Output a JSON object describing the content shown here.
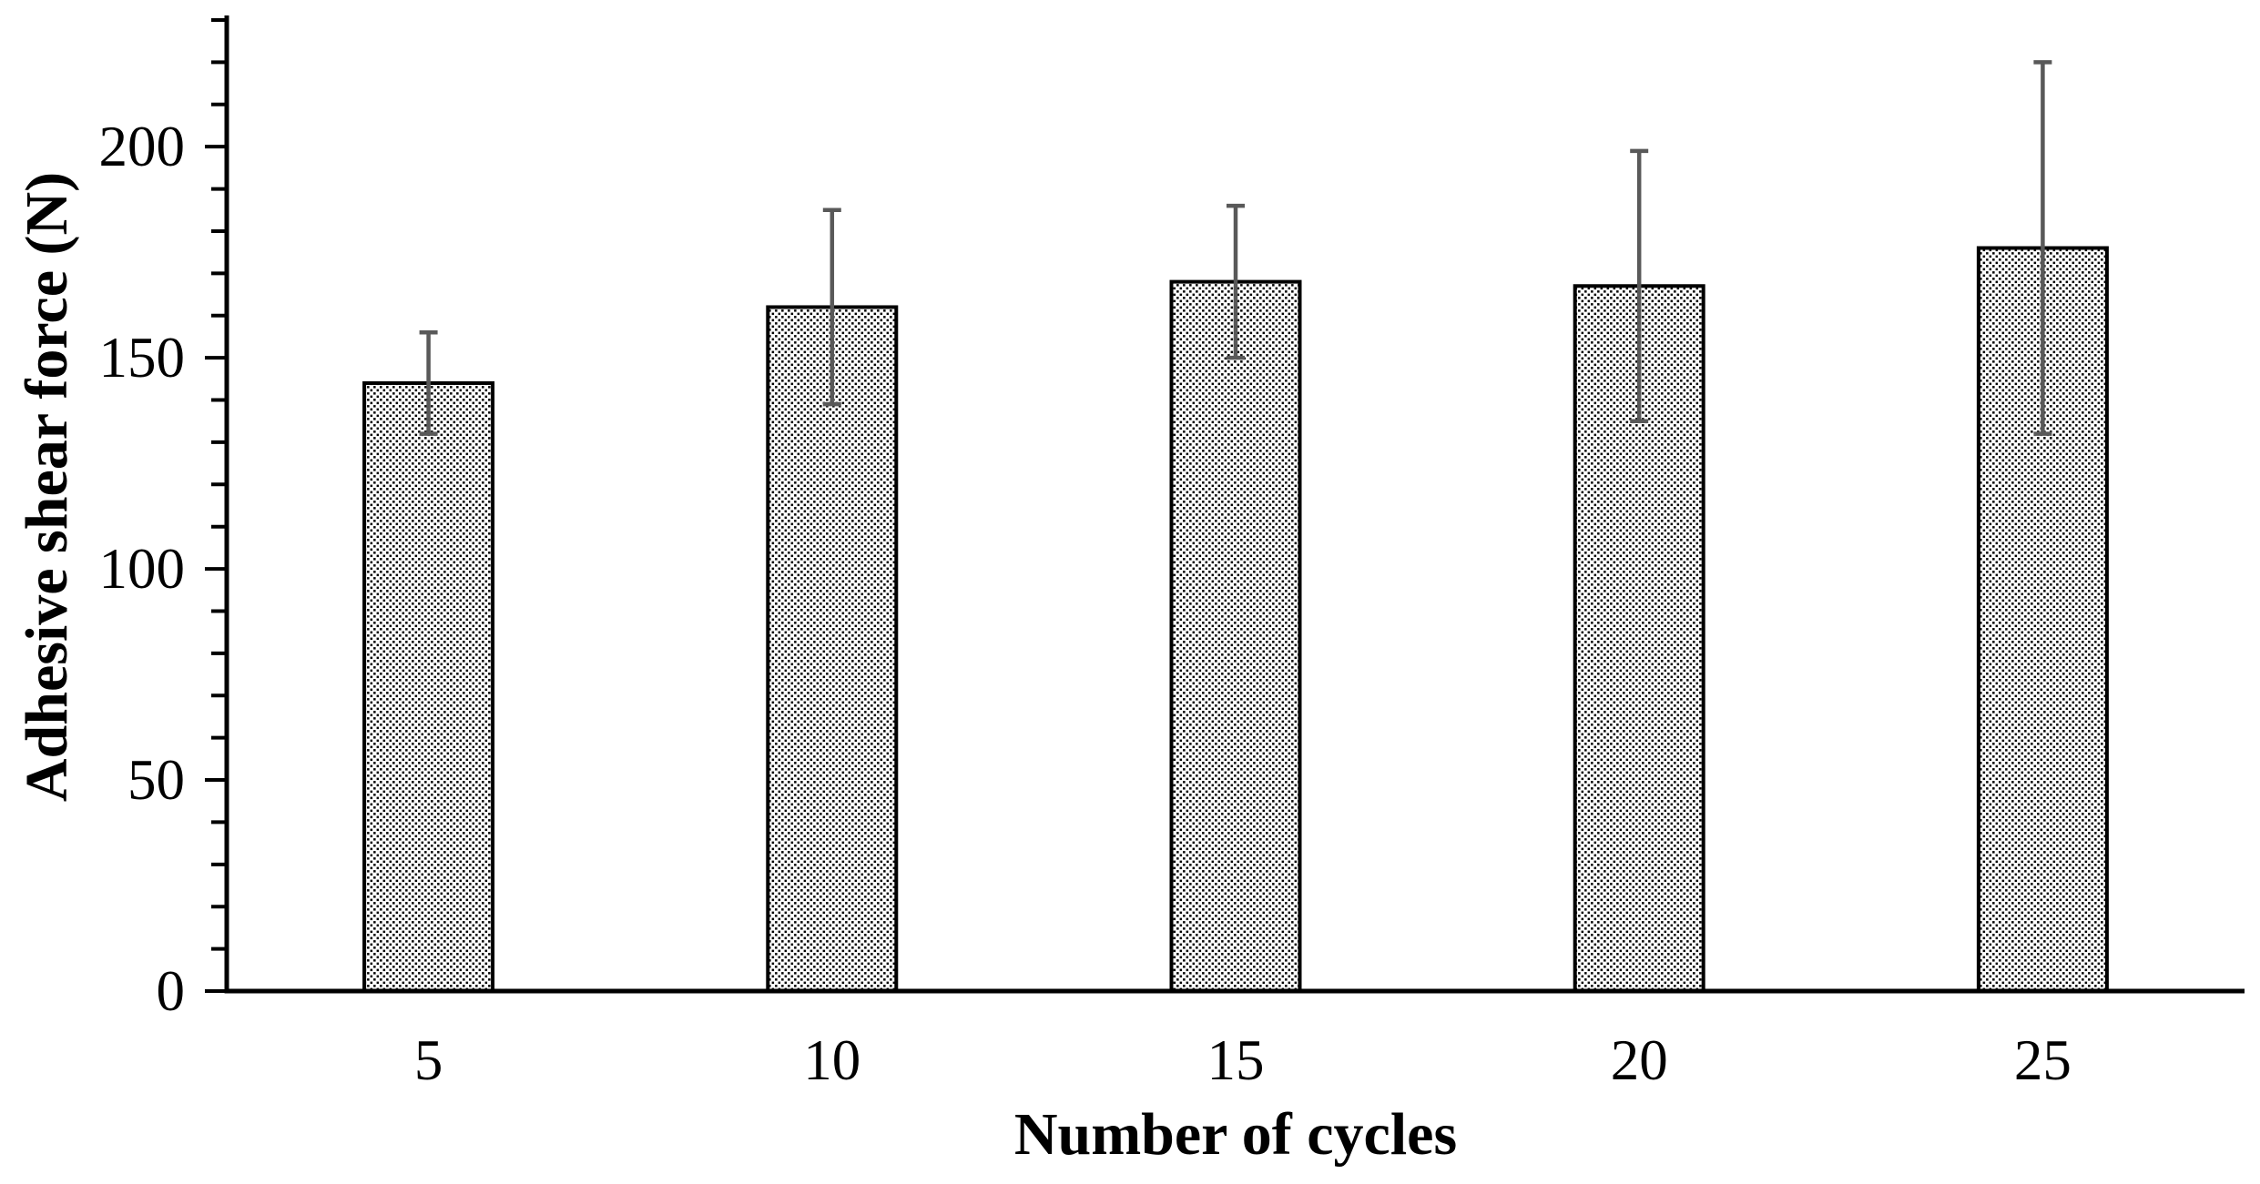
{
  "figure": {
    "background": "#ffffff"
  },
  "chart_data": {
    "type": "bar",
    "title": "",
    "categories": [
      5,
      10,
      15,
      20,
      25
    ],
    "values": [
      144,
      162,
      168,
      167,
      176
    ],
    "error_bars": [
      12,
      23,
      18,
      32,
      44
    ],
    "xlabel": "Number of cycles",
    "ylabel": "Adhesive shear force (N)",
    "ylim": [
      0,
      230
    ],
    "ytick_labels": [
      0,
      50,
      100,
      150,
      200
    ],
    "ytick_major_step": 50,
    "ytick_minor_step": 10,
    "xtick_side": "none",
    "grid": false,
    "legend": "none",
    "bar_fill_pattern": "black-dot-stipple-on-white",
    "bar_edge_color": "#000000",
    "error_bar_color": "#595959",
    "axis_color": "#000000",
    "tick_label_color": "#000000"
  }
}
